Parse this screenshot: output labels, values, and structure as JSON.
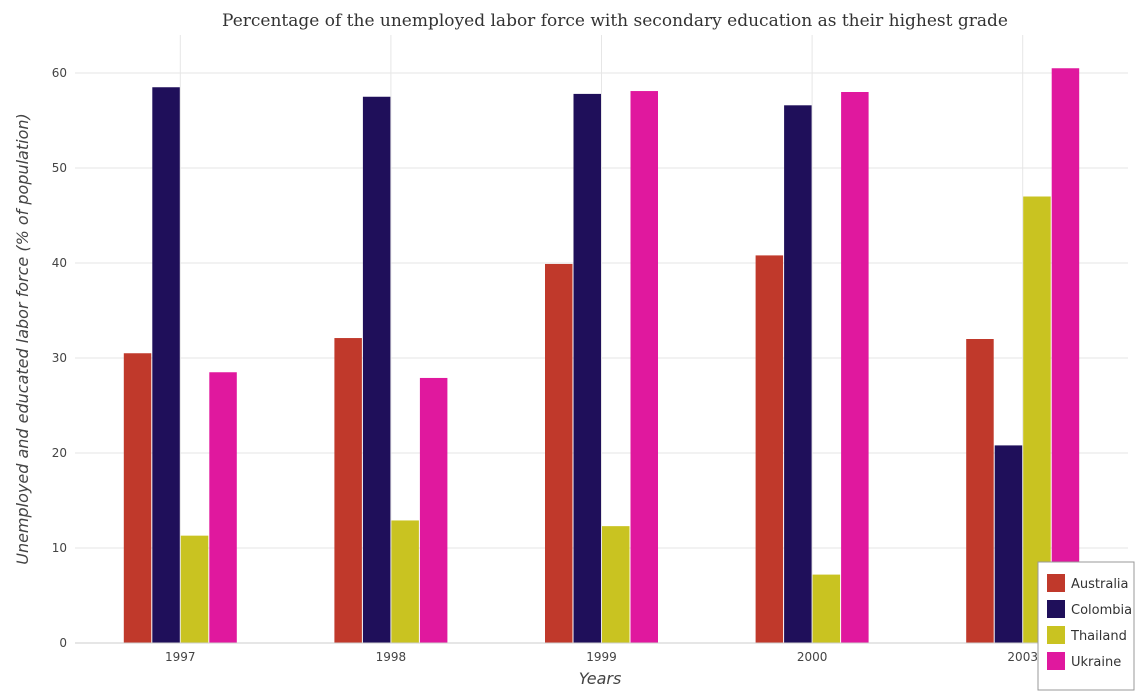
{
  "chart_data": {
    "type": "bar",
    "title": "Percentage of the unemployed labor force with secondary education as their highest grade",
    "xlabel": "Years",
    "ylabel": "Unemployed and educated labor force (% of population)",
    "categories": [
      "1997",
      "1998",
      "1999",
      "2000",
      "2003"
    ],
    "ylim": [
      0,
      64
    ],
    "yticks": [
      0,
      10,
      20,
      30,
      40,
      50,
      60
    ],
    "grid": true,
    "legend_position": "bottom-right",
    "series": [
      {
        "name": "Australia",
        "color": "#c0392b",
        "values": [
          30.5,
          32.1,
          39.9,
          40.8,
          32.0
        ]
      },
      {
        "name": "Colombia",
        "color": "#1f0f5a",
        "values": [
          58.5,
          57.5,
          57.8,
          56.6,
          20.8
        ]
      },
      {
        "name": "Thailand",
        "color": "#c9c321",
        "values": [
          11.3,
          12.9,
          12.3,
          7.2,
          47.0
        ]
      },
      {
        "name": "Ukraine",
        "color": "#e0189e",
        "values": [
          28.5,
          27.9,
          58.1,
          58.0,
          60.5
        ]
      }
    ]
  }
}
